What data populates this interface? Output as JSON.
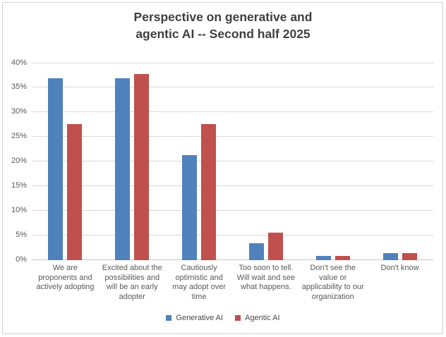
{
  "chart_data": {
    "type": "bar",
    "title": "Perspective on generative and\nagentic AI -- Second half 2025",
    "categories": [
      "We are proponents and actively adopting",
      "Excited about the possibilities and will be an early adopter",
      "Cautiously optimistic and may adopt over time",
      "Too soon to tell. Will wait and see what happens.",
      "Don't see the value or applicability to our organization",
      "Don't know"
    ],
    "series": [
      {
        "name": "Generative AI",
        "color": "#4F81BD",
        "values": [
          36.8,
          36.8,
          21.3,
          3.4,
          0.8,
          1.4
        ]
      },
      {
        "name": "Agentic AI",
        "color": "#C0504D",
        "values": [
          27.6,
          37.7,
          27.5,
          5.5,
          0.8,
          1.3
        ]
      }
    ],
    "xlabel": "",
    "ylabel": "",
    "ylim": [
      0,
      40
    ],
    "ytick_step": 5,
    "ytick_suffix": "%",
    "grid": true,
    "legend_position": "bottom"
  },
  "colors": {
    "title_text": "#3F3F3F",
    "tick_text": "#595959",
    "category_text": "#595959",
    "legend_text": "#474747",
    "gridline": "#D9D9D9",
    "axis_line": "#C6C6C6",
    "frame_border": "#D4D4D4",
    "background": "#FFFFFF"
  }
}
